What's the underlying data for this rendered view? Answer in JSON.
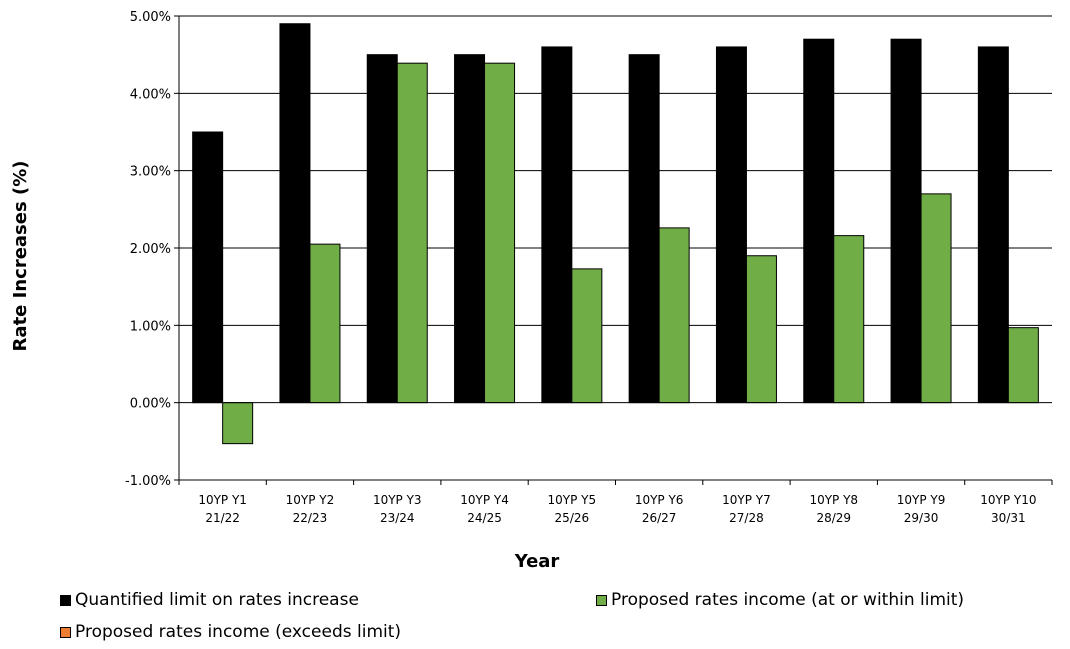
{
  "chart_data": {
    "type": "bar",
    "title": "",
    "xlabel": "Year",
    "ylabel": "Rate Increases (%)",
    "ylim": [
      -1.0,
      5.0
    ],
    "yticks": [
      -1.0,
      0.0,
      1.0,
      2.0,
      3.0,
      4.0,
      5.0
    ],
    "ytick_labels": [
      "-1.00%",
      "0.00%",
      "1.00%",
      "2.00%",
      "3.00%",
      "4.00%",
      "5.00%"
    ],
    "grid": true,
    "legend_position": "bottom",
    "categories": [
      {
        "line1": "10YP Y1",
        "line2": "21/22"
      },
      {
        "line1": "10YP Y2",
        "line2": "22/23"
      },
      {
        "line1": "10YP Y3",
        "line2": "23/24"
      },
      {
        "line1": "10YP Y4",
        "line2": "24/25"
      },
      {
        "line1": "10YP Y5",
        "line2": "25/26"
      },
      {
        "line1": "10YP Y6",
        "line2": "26/27"
      },
      {
        "line1": "10YP Y7",
        "line2": "27/28"
      },
      {
        "line1": "10YP Y8",
        "line2": "28/29"
      },
      {
        "line1": "10YP Y9",
        "line2": "29/30"
      },
      {
        "line1": "10YP Y10",
        "line2": "30/31"
      }
    ],
    "series": [
      {
        "name": "Quantified limit on rates increase",
        "color": "#000000",
        "values": [
          3.5,
          4.9,
          4.5,
          4.5,
          4.6,
          4.5,
          4.6,
          4.7,
          4.7,
          4.6
        ]
      },
      {
        "name": "Proposed rates income (at or within limit)",
        "color": "#70AD47",
        "values": [
          -0.53,
          2.05,
          4.39,
          4.39,
          1.73,
          2.26,
          1.9,
          2.16,
          2.7,
          0.97
        ]
      },
      {
        "name": "Proposed rates income (exceeds limit)",
        "color": "#ED7D31",
        "values": [
          null,
          null,
          null,
          null,
          null,
          null,
          null,
          null,
          null,
          null
        ]
      }
    ]
  }
}
